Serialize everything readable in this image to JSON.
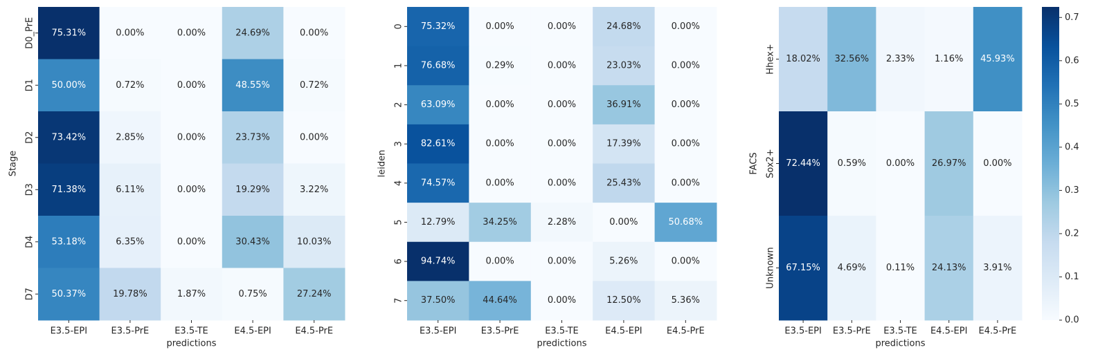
{
  "chart_data": [
    {
      "type": "heatmap",
      "cmap": "Blues",
      "xlabel": "predictions",
      "ylabel": "Stage",
      "categories": [
        "E3.5-EPI",
        "E3.5-PrE",
        "E3.5-TE",
        "E4.5-EPI",
        "E4.5-PrE"
      ],
      "rows": [
        "D0_PrE",
        "D1",
        "D2",
        "D3",
        "D4",
        "D7"
      ],
      "clim": [
        0,
        0.7531
      ],
      "values": [
        [
          0.7531,
          0,
          0,
          0.2469,
          0
        ],
        [
          0.5,
          0.0072,
          0,
          0.4855,
          0.0072
        ],
        [
          0.7342,
          0.0285,
          0,
          0.2373,
          0
        ],
        [
          0.7138,
          0.0611,
          0,
          0.1929,
          0.0322
        ],
        [
          0.5318,
          0.0635,
          0,
          0.3043,
          0.1003
        ],
        [
          0.5037,
          0.1978,
          0.0187,
          0.0075,
          0.2724
        ]
      ],
      "value_labels": [
        [
          "75.31%",
          "0.00%",
          "0.00%",
          "24.69%",
          "0.00%"
        ],
        [
          "50.00%",
          "0.72%",
          "0.00%",
          "48.55%",
          "0.72%"
        ],
        [
          "73.42%",
          "2.85%",
          "0.00%",
          "23.73%",
          "0.00%"
        ],
        [
          "71.38%",
          "6.11%",
          "0.00%",
          "19.29%",
          "3.22%"
        ],
        [
          "53.18%",
          "6.35%",
          "0.00%",
          "30.43%",
          "10.03%"
        ],
        [
          "50.37%",
          "19.78%",
          "1.87%",
          "0.75%",
          "27.24%"
        ]
      ]
    },
    {
      "type": "heatmap",
      "cmap": "Blues",
      "xlabel": "predictions",
      "ylabel": "leiden",
      "categories": [
        "E3.5-EPI",
        "E3.5-PrE",
        "E3.5-TE",
        "E4.5-EPI",
        "E4.5-PrE"
      ],
      "rows": [
        "0",
        "1",
        "2",
        "3",
        "4",
        "5",
        "6",
        "7"
      ],
      "clim": [
        0,
        0.9474
      ],
      "values": [
        [
          0.7532,
          0,
          0,
          0.2468,
          0
        ],
        [
          0.7668,
          0.0029,
          0,
          0.2303,
          0
        ],
        [
          0.6309,
          0,
          0,
          0.3691,
          0
        ],
        [
          0.8261,
          0,
          0,
          0.1739,
          0
        ],
        [
          0.7457,
          0,
          0,
          0.2543,
          0
        ],
        [
          0.1279,
          0.3425,
          0.0228,
          0,
          0.5068
        ],
        [
          0.9474,
          0,
          0,
          0.0526,
          0
        ],
        [
          0.375,
          0.4464,
          0,
          0.125,
          0.0536
        ]
      ],
      "value_labels": [
        [
          "75.32%",
          "0.00%",
          "0.00%",
          "24.68%",
          "0.00%"
        ],
        [
          "76.68%",
          "0.29%",
          "0.00%",
          "23.03%",
          "0.00%"
        ],
        [
          "63.09%",
          "0.00%",
          "0.00%",
          "36.91%",
          "0.00%"
        ],
        [
          "82.61%",
          "0.00%",
          "0.00%",
          "17.39%",
          "0.00%"
        ],
        [
          "74.57%",
          "0.00%",
          "0.00%",
          "25.43%",
          "0.00%"
        ],
        [
          "12.79%",
          "34.25%",
          "2.28%",
          "0.00%",
          "50.68%"
        ],
        [
          "94.74%",
          "0.00%",
          "0.00%",
          "5.26%",
          "0.00%"
        ],
        [
          "37.50%",
          "44.64%",
          "0.00%",
          "12.50%",
          "5.36%"
        ]
      ]
    },
    {
      "type": "heatmap",
      "cmap": "Blues",
      "xlabel": "predictions",
      "ylabel": "FACS",
      "categories": [
        "E3.5-EPI",
        "E3.5-PrE",
        "E3.5-TE",
        "E4.5-EPI",
        "E4.5-PrE"
      ],
      "rows": [
        "Hhex+",
        "Sox2+",
        "Unknown"
      ],
      "clim": [
        0,
        0.7244
      ],
      "colorbar": true,
      "cticks": [
        {
          "value": 0,
          "label": "0.0"
        },
        0.1,
        0.2,
        0.3,
        0.4,
        0.5,
        0.6,
        0.7
      ],
      "values": [
        [
          0.1802,
          0.3256,
          0.0233,
          0.0116,
          0.4593
        ],
        [
          0.7244,
          0.0059,
          0,
          0.2697,
          0
        ],
        [
          0.6715,
          0.0469,
          0.0011,
          0.2413,
          0.0391
        ]
      ],
      "value_labels": [
        [
          "18.02%",
          "32.56%",
          "2.33%",
          "1.16%",
          "45.93%"
        ],
        [
          "72.44%",
          "0.59%",
          "0.00%",
          "26.97%",
          "0.00%"
        ],
        [
          "67.15%",
          "4.69%",
          "0.11%",
          "24.13%",
          "3.91%"
        ]
      ]
    }
  ]
}
